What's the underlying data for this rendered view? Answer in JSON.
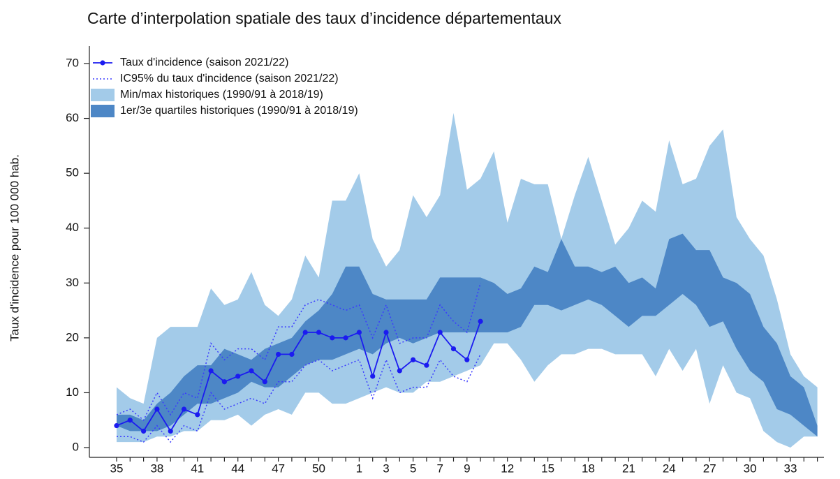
{
  "chart_data": {
    "type": "line",
    "title": "Carte d’interpolation spatiale des taux d’incidence départementaux",
    "y_label": "Taux d'incidence pour 100 000 hab.",
    "categories": [
      "35",
      null,
      null,
      "38",
      null,
      null,
      "41",
      null,
      null,
      "44",
      null,
      null,
      "47",
      null,
      null,
      "50",
      null,
      null,
      "1",
      null,
      "3",
      null,
      "5",
      null,
      "7",
      null,
      "9",
      null,
      null,
      "12",
      null,
      null,
      "15",
      null,
      null,
      "18",
      null,
      null,
      "21",
      null,
      null,
      "24",
      null,
      null,
      "27",
      null,
      null,
      "30",
      null,
      null,
      "33",
      null,
      null
    ],
    "ylim": [
      0,
      70
    ],
    "yticks": [
      0,
      10,
      20,
      30,
      40,
      50,
      60,
      70
    ],
    "legend": "top-left",
    "bands": [
      {
        "name": "Min/max historiques (1990/91 à 2018/19)",
        "color": "#a3cbe9",
        "upper": [
          11,
          9,
          8,
          20,
          22,
          22,
          22,
          29,
          26,
          27,
          32,
          26,
          24,
          27,
          35,
          31,
          45,
          45,
          50,
          38,
          33,
          36,
          46,
          42,
          46,
          61,
          47,
          49,
          54,
          41,
          49,
          48,
          48,
          38,
          46,
          53,
          45,
          37,
          40,
          45,
          43,
          56,
          48,
          49,
          55,
          58,
          42,
          38,
          35,
          27,
          17,
          13,
          11
        ],
        "lower": [
          1,
          1,
          1,
          2,
          2,
          3,
          3,
          5,
          5,
          6,
          4,
          6,
          7,
          6,
          10,
          10,
          8,
          8,
          9,
          10,
          11,
          10,
          10,
          12,
          12,
          13,
          14,
          15,
          19,
          19,
          16,
          12,
          15,
          17,
          17,
          18,
          18,
          17,
          17,
          17,
          13,
          18,
          14,
          18,
          8,
          15,
          10,
          9,
          3,
          1,
          0,
          2,
          2
        ]
      },
      {
        "name": "1er/3e quartiles historiques (1990/91 à 2018/19)",
        "color": "#4d87c6",
        "upper": [
          6,
          6,
          5,
          8,
          10,
          13,
          15,
          15,
          18,
          17,
          16,
          18,
          19,
          20,
          23,
          25,
          28,
          33,
          33,
          28,
          27,
          27,
          27,
          27,
          31,
          31,
          31,
          31,
          30,
          28,
          29,
          33,
          32,
          38,
          33,
          33,
          32,
          33,
          30,
          31,
          29,
          38,
          39,
          36,
          36,
          31,
          30,
          28,
          22,
          19,
          13,
          11,
          4
        ],
        "lower": [
          4,
          3,
          3,
          3,
          4,
          6,
          8,
          8,
          9,
          10,
          12,
          11,
          11,
          13,
          15,
          16,
          16,
          17,
          18,
          17,
          19,
          20,
          19,
          20,
          21,
          21,
          21,
          21,
          21,
          21,
          22,
          26,
          26,
          25,
          26,
          27,
          26,
          24,
          22,
          24,
          24,
          26,
          28,
          26,
          22,
          23,
          18,
          14,
          12,
          7,
          6,
          4,
          2
        ]
      }
    ],
    "ci": {
      "name": "IC95% du taux d'incidence (saison 2021/22)",
      "color": "#3a3aff",
      "upper": [
        6,
        7,
        5,
        10,
        6,
        10,
        9,
        19,
        16,
        18,
        18,
        16,
        22,
        22,
        26,
        27,
        26,
        25,
        26,
        20,
        26,
        19,
        20,
        20,
        26,
        23,
        21,
        30,
        null,
        null,
        null,
        null,
        null,
        null,
        null,
        null,
        null,
        null,
        null,
        null,
        null,
        null,
        null,
        null,
        null,
        null,
        null,
        null,
        null,
        null,
        null,
        null,
        null
      ],
      "lower": [
        2,
        2,
        1,
        4,
        1,
        4,
        3,
        10,
        7,
        8,
        9,
        8,
        12,
        12,
        15,
        16,
        14,
        15,
        16,
        9,
        16,
        10,
        11,
        11,
        16,
        13,
        12,
        17,
        null,
        null,
        null,
        null,
        null,
        null,
        null,
        null,
        null,
        null,
        null,
        null,
        null,
        null,
        null,
        null,
        null,
        null,
        null,
        null,
        null,
        null,
        null,
        null,
        null
      ]
    },
    "series": [
      {
        "name": "Taux d'incidence (saison 2021/22)",
        "color": "#1b1bf0",
        "values": [
          4,
          5,
          3,
          7,
          3,
          7,
          6,
          14,
          12,
          13,
          14,
          12,
          17,
          17,
          21,
          21,
          20,
          20,
          21,
          13,
          21,
          14,
          16,
          15,
          21,
          18,
          16,
          23,
          null,
          null,
          null,
          null,
          null,
          null,
          null,
          null,
          null,
          null,
          null,
          null,
          null,
          null,
          null,
          null,
          null,
          null,
          null,
          null,
          null,
          null,
          null,
          null,
          null
        ]
      }
    ]
  }
}
